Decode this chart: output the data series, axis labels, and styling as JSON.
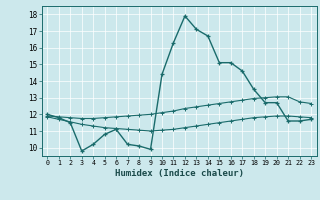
{
  "title": "",
  "xlabel": "Humidex (Indice chaleur)",
  "bg_color": "#cce8ec",
  "line_color": "#1a6b6b",
  "xlim": [
    -0.5,
    23.5
  ],
  "ylim": [
    9.5,
    18.5
  ],
  "yticks": [
    10,
    11,
    12,
    13,
    14,
    15,
    16,
    17,
    18
  ],
  "xticks": [
    0,
    1,
    2,
    3,
    4,
    5,
    6,
    7,
    8,
    9,
    10,
    11,
    12,
    13,
    14,
    15,
    16,
    17,
    18,
    19,
    20,
    21,
    22,
    23
  ],
  "main_line_x": [
    0,
    1,
    2,
    3,
    4,
    5,
    6,
    7,
    8,
    9,
    10,
    11,
    12,
    13,
    14,
    15,
    16,
    17,
    18,
    19,
    20,
    21,
    22,
    23
  ],
  "main_line_y": [
    12.0,
    11.8,
    11.5,
    9.8,
    10.2,
    10.8,
    11.1,
    10.2,
    10.1,
    9.9,
    14.4,
    16.3,
    17.9,
    17.1,
    16.7,
    15.1,
    15.1,
    14.6,
    13.5,
    12.7,
    12.7,
    11.6,
    11.6,
    11.7
  ],
  "upper_line_x": [
    0,
    1,
    2,
    3,
    4,
    5,
    6,
    7,
    8,
    9,
    10,
    11,
    12,
    13,
    14,
    15,
    16,
    17,
    18,
    19,
    20,
    21,
    22,
    23
  ],
  "upper_line_y": [
    11.9,
    11.85,
    11.8,
    11.75,
    11.75,
    11.8,
    11.85,
    11.9,
    11.95,
    12.0,
    12.1,
    12.2,
    12.35,
    12.45,
    12.55,
    12.65,
    12.75,
    12.85,
    12.95,
    13.0,
    13.05,
    13.05,
    12.75,
    12.65
  ],
  "lower_line_x": [
    0,
    1,
    2,
    3,
    4,
    5,
    6,
    7,
    8,
    9,
    10,
    11,
    12,
    13,
    14,
    15,
    16,
    17,
    18,
    19,
    20,
    21,
    22,
    23
  ],
  "lower_line_y": [
    11.85,
    11.7,
    11.55,
    11.4,
    11.3,
    11.2,
    11.15,
    11.1,
    11.05,
    11.0,
    11.05,
    11.1,
    11.2,
    11.3,
    11.4,
    11.5,
    11.6,
    11.7,
    11.8,
    11.85,
    11.9,
    11.9,
    11.85,
    11.8
  ]
}
